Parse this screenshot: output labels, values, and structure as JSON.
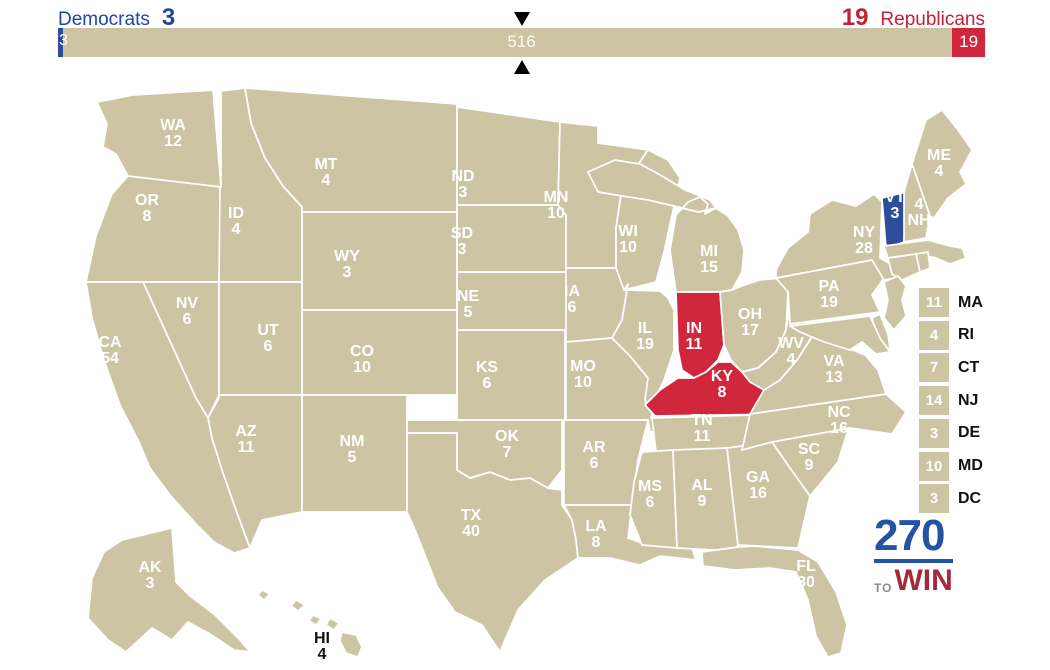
{
  "header": {
    "democrats_label": "Democrats",
    "democrats_total": "3",
    "republicans_total": "19",
    "republicans_label": "Republicans",
    "bar": {
      "democrat_ev": 3,
      "open_ev": 516,
      "republican_ev": 19,
      "total_ev": 538,
      "democrat_text": "3",
      "open_text": "516",
      "republican_text": "19"
    }
  },
  "colors": {
    "open": "#cdc4a3",
    "democrat": "#2d4c99",
    "republican": "#d1273c"
  },
  "legend": [
    {
      "ev": "11",
      "abbr": "MA"
    },
    {
      "ev": "4",
      "abbr": "RI"
    },
    {
      "ev": "7",
      "abbr": "CT"
    },
    {
      "ev": "14",
      "abbr": "NJ"
    },
    {
      "ev": "3",
      "abbr": "DE"
    },
    {
      "ev": "10",
      "abbr": "MD"
    },
    {
      "ev": "3",
      "abbr": "DC"
    }
  ],
  "logo": {
    "number": "270",
    "to": "TO",
    "win": "WIN"
  },
  "map": {
    "states": [
      {
        "abbr": "WA",
        "ev": "12",
        "party": "open"
      },
      {
        "abbr": "OR",
        "ev": "8",
        "party": "open"
      },
      {
        "abbr": "CA",
        "ev": "54",
        "party": "open"
      },
      {
        "abbr": "NV",
        "ev": "6",
        "party": "open"
      },
      {
        "abbr": "ID",
        "ev": "4",
        "party": "open"
      },
      {
        "abbr": "MT",
        "ev": "4",
        "party": "open"
      },
      {
        "abbr": "WY",
        "ev": "3",
        "party": "open"
      },
      {
        "abbr": "UT",
        "ev": "6",
        "party": "open"
      },
      {
        "abbr": "CO",
        "ev": "10",
        "party": "open"
      },
      {
        "abbr": "AZ",
        "ev": "11",
        "party": "open"
      },
      {
        "abbr": "NM",
        "ev": "5",
        "party": "open"
      },
      {
        "abbr": "TX",
        "ev": "40",
        "party": "open"
      },
      {
        "abbr": "OK",
        "ev": "7",
        "party": "open"
      },
      {
        "abbr": "KS",
        "ev": "6",
        "party": "open"
      },
      {
        "abbr": "NE",
        "ev": "5",
        "party": "open"
      },
      {
        "abbr": "SD",
        "ev": "3",
        "party": "open"
      },
      {
        "abbr": "ND",
        "ev": "3",
        "party": "open"
      },
      {
        "abbr": "MN",
        "ev": "10",
        "party": "open"
      },
      {
        "abbr": "IA",
        "ev": "6",
        "party": "open"
      },
      {
        "abbr": "MO",
        "ev": "10",
        "party": "open"
      },
      {
        "abbr": "AR",
        "ev": "6",
        "party": "open"
      },
      {
        "abbr": "LA",
        "ev": "8",
        "party": "open"
      },
      {
        "abbr": "WI",
        "ev": "10",
        "party": "open"
      },
      {
        "abbr": "IL",
        "ev": "19",
        "party": "open"
      },
      {
        "abbr": "MI",
        "ev": "15",
        "party": "open"
      },
      {
        "abbr": "IN",
        "ev": "11",
        "party": "republican"
      },
      {
        "abbr": "OH",
        "ev": "17",
        "party": "open"
      },
      {
        "abbr": "KY",
        "ev": "8",
        "party": "republican"
      },
      {
        "abbr": "TN",
        "ev": "11",
        "party": "open"
      },
      {
        "abbr": "MS",
        "ev": "6",
        "party": "open"
      },
      {
        "abbr": "AL",
        "ev": "9",
        "party": "open"
      },
      {
        "abbr": "GA",
        "ev": "16",
        "party": "open"
      },
      {
        "abbr": "FL",
        "ev": "30",
        "party": "open"
      },
      {
        "abbr": "SC",
        "ev": "9",
        "party": "open"
      },
      {
        "abbr": "NC",
        "ev": "16",
        "party": "open"
      },
      {
        "abbr": "VA",
        "ev": "13",
        "party": "open"
      },
      {
        "abbr": "WV",
        "ev": "4",
        "party": "open"
      },
      {
        "abbr": "PA",
        "ev": "19",
        "party": "open"
      },
      {
        "abbr": "NY",
        "ev": "28",
        "party": "open"
      },
      {
        "abbr": "ME",
        "ev": "4",
        "party": "open"
      },
      {
        "abbr": "VT",
        "ev": "3",
        "party": "democrat"
      },
      {
        "abbr": "NH",
        "ev": "4",
        "party": "open"
      },
      {
        "abbr": "MA",
        "ev": "11",
        "party": "open"
      },
      {
        "abbr": "RI",
        "ev": "4",
        "party": "open"
      },
      {
        "abbr": "CT",
        "ev": "7",
        "party": "open"
      },
      {
        "abbr": "NJ",
        "ev": "14",
        "party": "open"
      },
      {
        "abbr": "DE",
        "ev": "3",
        "party": "open"
      },
      {
        "abbr": "MD",
        "ev": "10",
        "party": "open"
      },
      {
        "abbr": "AK",
        "ev": "3",
        "party": "open"
      },
      {
        "abbr": "HI",
        "ev": "4",
        "party": "open"
      }
    ]
  }
}
